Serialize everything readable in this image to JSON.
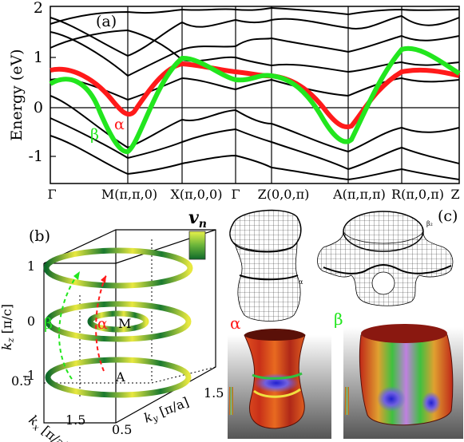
{
  "panel_a": {
    "label": "(a)",
    "ylabel": "Energy (eV)",
    "yticks": [
      "2",
      "1",
      "0",
      "-1"
    ],
    "ylim": [
      -1.5,
      2
    ],
    "kpoints": [
      "Γ",
      "M(π,π,0)",
      "X(π,0,0)",
      "Γ",
      "Z(0,0,π)",
      "A(π,π,π)",
      "R(π,0,π)",
      "Z"
    ],
    "alpha_label": "α",
    "beta_label": "β",
    "colors": {
      "alpha": "#ff1a1a",
      "beta": "#22e61e",
      "bands": "#000000"
    }
  },
  "panel_b": {
    "label": "(b)",
    "colorbar_label": "v",
    "colorbar_sub": "n",
    "zlabel": "k",
    "zlabel_sub": "z",
    "zlabel_unit": "[π/c]",
    "xlabel": "k",
    "xlabel_sub": "x",
    "xlabel_unit": "[π/a]",
    "ylabel": "k",
    "ylabel_sub": "y",
    "ylabel_unit": "[π/a]",
    "zticks": [
      "1",
      "0",
      "-1"
    ],
    "xticks": [
      "0.5",
      "1.5"
    ],
    "yticks": [
      "0.5",
      "1.5"
    ],
    "M_label": "M",
    "A_label": "A",
    "alpha_label": "α",
    "beta_label": "β"
  },
  "panel_c": {
    "label": "(c)",
    "alpha_label": "α",
    "beta_label": "β",
    "wire_alpha_tag": "α",
    "wire_beta_tag": "β₂"
  }
}
